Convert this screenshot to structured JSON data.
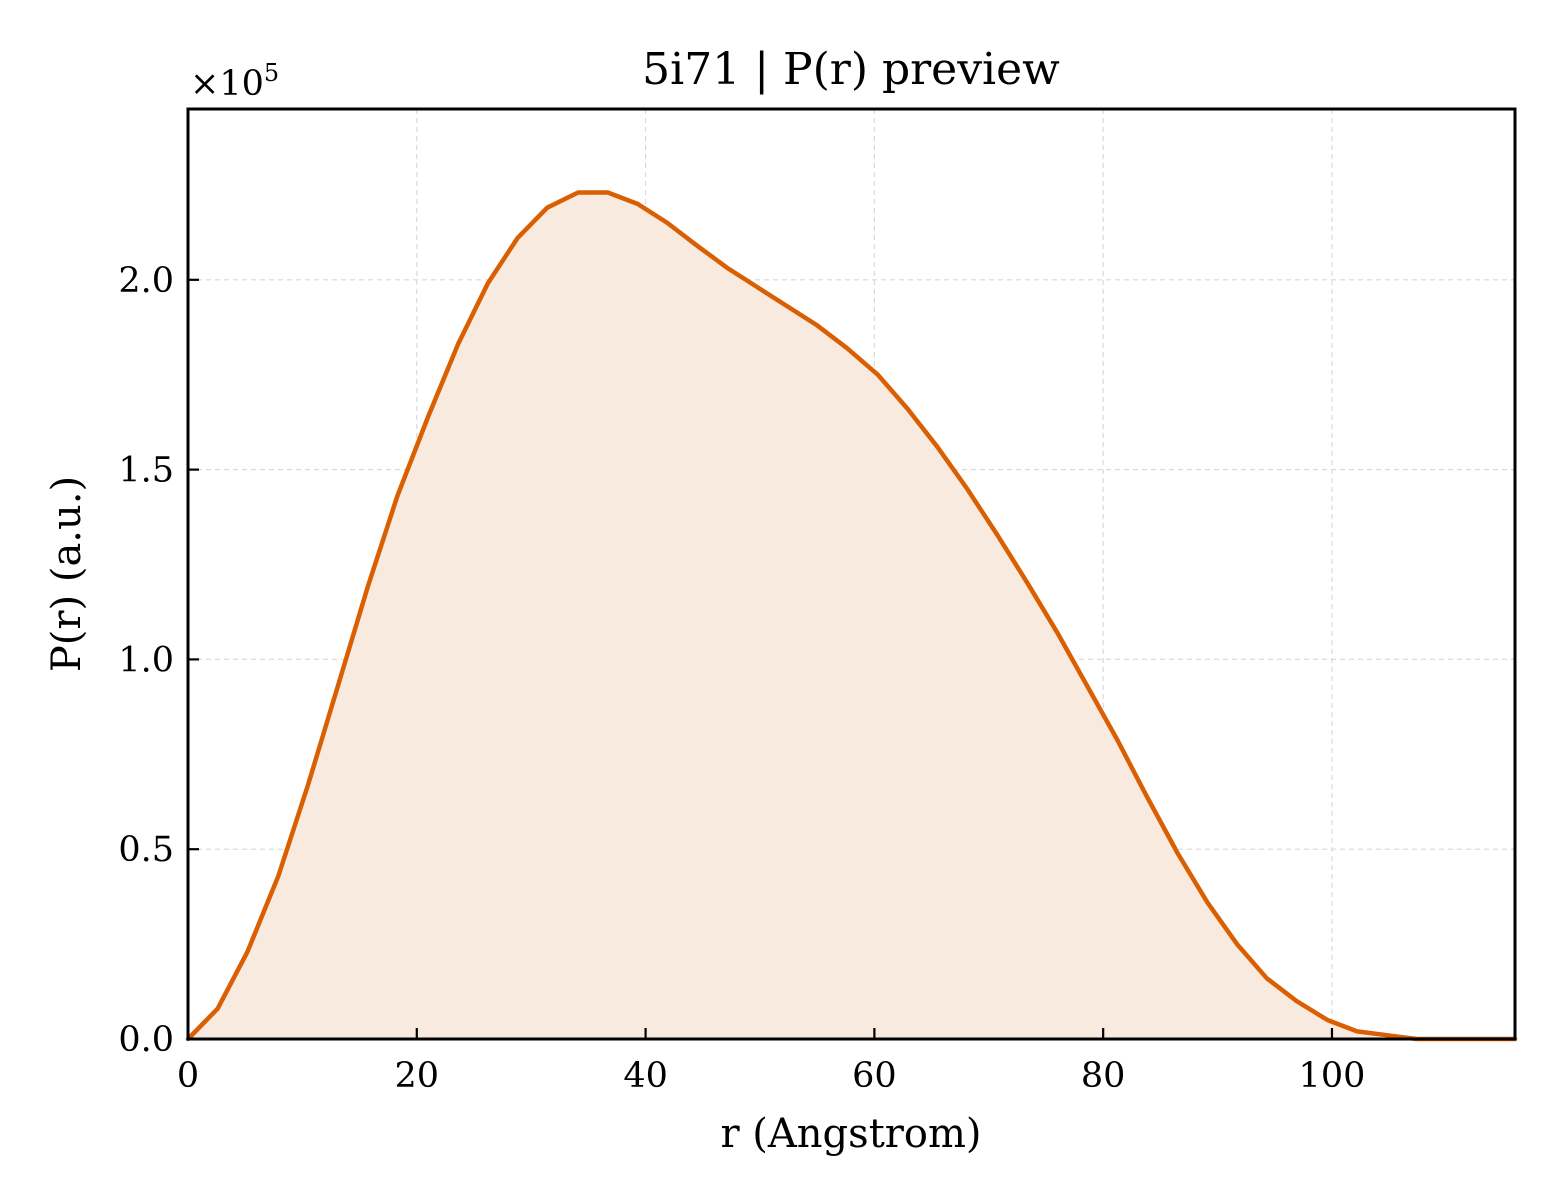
{
  "chart_data": {
    "type": "area",
    "title": "5i71 | P(r) preview",
    "xlabel": "r (Angstrom)",
    "ylabel": "P(r) (a.u.)",
    "y_offset_base": "×10",
    "y_offset_exp": "5",
    "xlim": [
      0,
      116
    ],
    "ylim": [
      0,
      2.45
    ],
    "x_ticks": [
      0,
      20,
      40,
      60,
      80,
      100
    ],
    "x_tick_labels": [
      "0",
      "20",
      "40",
      "60",
      "80",
      "100"
    ],
    "y_ticks": [
      0,
      0.5,
      1.0,
      1.5,
      2.0
    ],
    "y_tick_labels": [
      "0.0",
      "0.5",
      "1.0",
      "1.5",
      "2.0"
    ],
    "grid": true,
    "line_color": "#d95f02",
    "fill_color": "#f9eadf",
    "series": [
      {
        "x": [
          0,
          2.6,
          5.2,
          7.9,
          10.5,
          13.1,
          15.7,
          18.3,
          21.0,
          23.6,
          26.2,
          28.8,
          31.4,
          34.1,
          36.7,
          39.3,
          41.9,
          44.5,
          47.2,
          49.8,
          52.4,
          55.0,
          57.6,
          60.3,
          62.9,
          65.5,
          68.1,
          70.7,
          73.4,
          76.0,
          78.6,
          81.2,
          83.8,
          86.5,
          89.1,
          91.7,
          94.3,
          96.9,
          99.6,
          102.2,
          104.8,
          107.4,
          110.0,
          112.7,
          116.0
        ],
        "y": [
          0.0,
          0.08,
          0.23,
          0.43,
          0.67,
          0.93,
          1.19,
          1.43,
          1.64,
          1.83,
          1.99,
          2.11,
          2.19,
          2.23,
          2.23,
          2.2,
          2.15,
          2.09,
          2.03,
          1.98,
          1.93,
          1.88,
          1.82,
          1.75,
          1.66,
          1.56,
          1.45,
          1.33,
          1.2,
          1.07,
          0.93,
          0.79,
          0.64,
          0.49,
          0.36,
          0.25,
          0.16,
          0.1,
          0.05,
          0.02,
          0.01,
          0.0,
          0.0,
          0.0,
          0.0
        ]
      }
    ]
  }
}
